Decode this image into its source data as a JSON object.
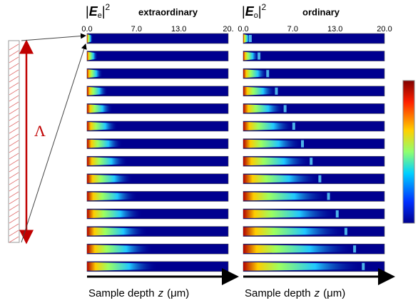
{
  "panels": [
    {
      "label": {
        "open": "|",
        "symbol": "E",
        "subscript": "e",
        "close": "|",
        "superscript": "2"
      },
      "mode": "extraordinary",
      "ticks": [
        "0.0",
        "7.0",
        "13.0",
        "20."
      ],
      "caption": {
        "text": "Sample depth",
        "variable": "z",
        "unit": "(μm)"
      }
    },
    {
      "label": {
        "open": "|",
        "symbol": "E",
        "subscript": "o",
        "close": "|",
        "superscript": "2"
      },
      "mode": "ordinary",
      "ticks": [
        "0.0",
        "7.0",
        "13.0",
        "20.0"
      ],
      "caption": {
        "text": "Sample depth",
        "variable": "z",
        "unit": "(μm)"
      }
    }
  ],
  "period_symbol": "Λ"
}
